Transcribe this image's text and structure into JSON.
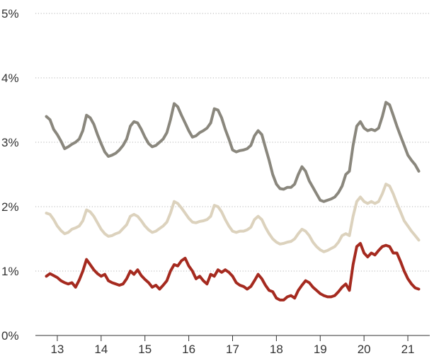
{
  "chart_data": {
    "type": "line",
    "title": "",
    "xlabel": "",
    "ylabel": "",
    "x_start": 2012.75,
    "x_step_years": 0.0833333,
    "xlim": [
      2012.5,
      2021.5
    ],
    "x_ticks": [
      2013,
      2014,
      2015,
      2016,
      2017,
      2018,
      2019,
      2020,
      2021
    ],
    "x_tick_labels": [
      "13",
      "14",
      "15",
      "16",
      "17",
      "18",
      "19",
      "20",
      "21"
    ],
    "ylim": [
      0,
      5
    ],
    "y_ticks": [
      0,
      1,
      2,
      3,
      4,
      5
    ],
    "y_tick_labels": [
      "0%",
      "1%",
      "2%",
      "3%",
      "4%",
      "5%"
    ],
    "grid": true,
    "legend": "none",
    "series": [
      {
        "color": "#8a877d",
        "values": [
          3.4,
          3.35,
          3.2,
          3.12,
          3.02,
          2.9,
          2.93,
          2.97,
          3.0,
          3.05,
          3.18,
          3.42,
          3.38,
          3.28,
          3.12,
          2.98,
          2.85,
          2.78,
          2.8,
          2.83,
          2.88,
          2.95,
          3.05,
          3.25,
          3.32,
          3.3,
          3.2,
          3.08,
          2.98,
          2.93,
          2.95,
          3.0,
          3.05,
          3.15,
          3.35,
          3.6,
          3.55,
          3.42,
          3.3,
          3.18,
          3.08,
          3.1,
          3.15,
          3.18,
          3.22,
          3.3,
          3.52,
          3.5,
          3.38,
          3.2,
          3.05,
          2.88,
          2.85,
          2.87,
          2.88,
          2.9,
          2.95,
          3.1,
          3.18,
          3.12,
          2.92,
          2.72,
          2.5,
          2.35,
          2.28,
          2.27,
          2.3,
          2.3,
          2.35,
          2.5,
          2.62,
          2.55,
          2.4,
          2.3,
          2.2,
          2.1,
          2.08,
          2.1,
          2.12,
          2.15,
          2.22,
          2.32,
          2.5,
          2.55,
          2.95,
          3.25,
          3.32,
          3.22,
          3.18,
          3.2,
          3.18,
          3.22,
          3.4,
          3.62,
          3.58,
          3.42,
          3.25,
          3.1,
          2.95,
          2.8,
          2.72,
          2.65,
          2.55
        ]
      },
      {
        "color": "#dcd2bd",
        "values": [
          1.9,
          1.88,
          1.8,
          1.7,
          1.63,
          1.58,
          1.6,
          1.65,
          1.67,
          1.7,
          1.78,
          1.95,
          1.92,
          1.85,
          1.75,
          1.65,
          1.58,
          1.54,
          1.55,
          1.58,
          1.6,
          1.66,
          1.72,
          1.85,
          1.88,
          1.85,
          1.78,
          1.7,
          1.64,
          1.6,
          1.62,
          1.66,
          1.7,
          1.76,
          1.9,
          2.08,
          2.05,
          1.98,
          1.9,
          1.82,
          1.76,
          1.75,
          1.77,
          1.78,
          1.8,
          1.85,
          2.02,
          2.0,
          1.92,
          1.8,
          1.7,
          1.62,
          1.6,
          1.62,
          1.62,
          1.64,
          1.68,
          1.8,
          1.85,
          1.8,
          1.68,
          1.58,
          1.5,
          1.45,
          1.42,
          1.43,
          1.45,
          1.46,
          1.5,
          1.58,
          1.65,
          1.62,
          1.55,
          1.45,
          1.38,
          1.33,
          1.3,
          1.32,
          1.35,
          1.38,
          1.45,
          1.55,
          1.58,
          1.55,
          1.85,
          2.08,
          2.15,
          2.08,
          2.05,
          2.08,
          2.05,
          2.08,
          2.2,
          2.35,
          2.32,
          2.2,
          2.05,
          1.92,
          1.78,
          1.7,
          1.62,
          1.55,
          1.48
        ]
      },
      {
        "color": "#a52a1f",
        "values": [
          0.92,
          0.96,
          0.93,
          0.9,
          0.85,
          0.82,
          0.8,
          0.82,
          0.75,
          0.86,
          1.0,
          1.18,
          1.1,
          1.02,
          0.96,
          0.92,
          0.95,
          0.85,
          0.82,
          0.8,
          0.78,
          0.8,
          0.88,
          1.0,
          0.95,
          1.02,
          0.93,
          0.87,
          0.82,
          0.75,
          0.78,
          0.72,
          0.78,
          0.85,
          1.0,
          1.1,
          1.08,
          1.16,
          1.2,
          1.08,
          1.0,
          0.88,
          0.92,
          0.85,
          0.8,
          0.95,
          0.92,
          1.02,
          0.98,
          1.02,
          0.98,
          0.92,
          0.82,
          0.78,
          0.76,
          0.72,
          0.76,
          0.85,
          0.95,
          0.88,
          0.78,
          0.7,
          0.68,
          0.58,
          0.55,
          0.55,
          0.6,
          0.62,
          0.58,
          0.7,
          0.78,
          0.85,
          0.82,
          0.75,
          0.7,
          0.65,
          0.62,
          0.6,
          0.6,
          0.62,
          0.68,
          0.75,
          0.8,
          0.7,
          1.1,
          1.38,
          1.43,
          1.28,
          1.22,
          1.28,
          1.25,
          1.32,
          1.38,
          1.4,
          1.38,
          1.28,
          1.28,
          1.15,
          1.0,
          0.88,
          0.8,
          0.74,
          0.72
        ]
      }
    ]
  }
}
